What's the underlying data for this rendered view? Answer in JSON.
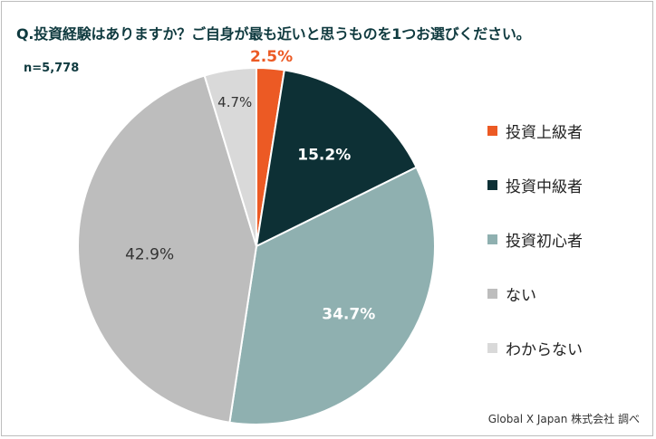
{
  "title": "Q.投資経験はありますか？ご自身が最も近いと思うものを1つお選びください。",
  "sample_size": "n=5,778",
  "source": "Global X Japan 株式会社 調べ",
  "chart_data": {
    "type": "pie",
    "title": "Q.投資経験はありますか？ご自身が最も近いと思うものを1つお選びください。",
    "unit": "%",
    "start": "12 o'clock, clockwise",
    "categories": [
      "投資上級者",
      "投資中級者",
      "投資初心者",
      "ない",
      "わからない"
    ],
    "values": [
      2.5,
      15.2,
      34.7,
      42.9,
      4.7
    ],
    "labels": [
      "2.5%",
      "15.2%",
      "34.7%",
      "42.9%",
      "4.7%"
    ],
    "colors": [
      "#ec5a24",
      "#0d3035",
      "#8fb0b0",
      "#bdbdbd",
      "#d9d9d9"
    ],
    "label_colors": [
      "#ec5a24",
      "#ffffff",
      "#ffffff",
      "#333333",
      "#333333"
    ],
    "legend": "right"
  }
}
